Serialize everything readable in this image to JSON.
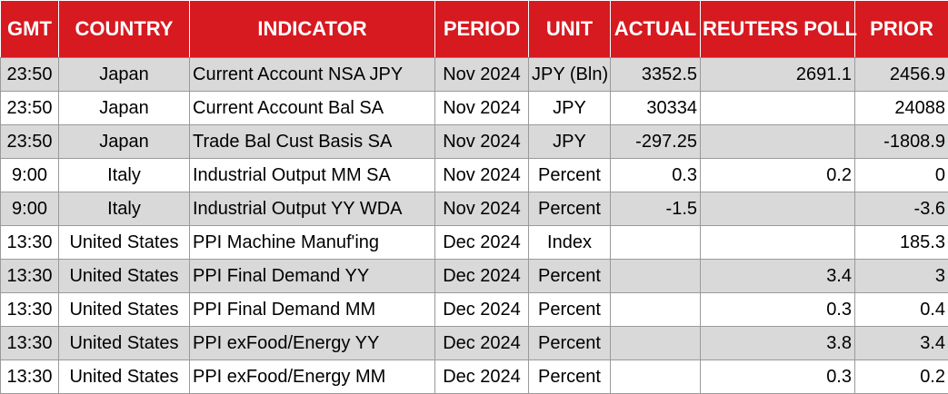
{
  "header": {
    "gmt": "GMT",
    "country": "COUNTRY",
    "indicator": "INDICATOR",
    "period": "PERIOD",
    "unit": "UNIT",
    "actual": "ACTUAL",
    "reuters_poll": "REUTERS POLL",
    "prior": "PRIOR"
  },
  "rows": [
    {
      "gmt": "23:50",
      "country": "Japan",
      "indicator": "Current Account NSA JPY",
      "period": "Nov 2024",
      "unit": "JPY (Bln)",
      "actual": "3352.5",
      "reuters_poll": "2691.1",
      "prior": "2456.9"
    },
    {
      "gmt": "23:50",
      "country": "Japan",
      "indicator": "Current Account Bal SA",
      "period": "Nov 2024",
      "unit": "JPY",
      "actual": "30334",
      "reuters_poll": "",
      "prior": "24088"
    },
    {
      "gmt": "23:50",
      "country": "Japan",
      "indicator": "Trade Bal Cust Basis SA",
      "period": "Nov 2024",
      "unit": "JPY",
      "actual": "-297.25",
      "reuters_poll": "",
      "prior": "-1808.9"
    },
    {
      "gmt": "9:00",
      "country": "Italy",
      "indicator": "Industrial Output MM SA",
      "period": "Nov 2024",
      "unit": "Percent",
      "actual": "0.3",
      "reuters_poll": "0.2",
      "prior": "0"
    },
    {
      "gmt": "9:00",
      "country": "Italy",
      "indicator": "Industrial Output YY WDA",
      "period": "Nov 2024",
      "unit": "Percent",
      "actual": "-1.5",
      "reuters_poll": "",
      "prior": "-3.6"
    },
    {
      "gmt": "13:30",
      "country": "United States",
      "indicator": "PPI Machine Manuf'ing",
      "period": "Dec 2024",
      "unit": "Index",
      "actual": "",
      "reuters_poll": "",
      "prior": "185.3"
    },
    {
      "gmt": "13:30",
      "country": "United States",
      "indicator": "PPI Final Demand YY",
      "period": "Dec 2024",
      "unit": "Percent",
      "actual": "",
      "reuters_poll": "3.4",
      "prior": "3"
    },
    {
      "gmt": "13:30",
      "country": "United States",
      "indicator": "PPI Final Demand MM",
      "period": "Dec 2024",
      "unit": "Percent",
      "actual": "",
      "reuters_poll": "0.3",
      "prior": "0.4"
    },
    {
      "gmt": "13:30",
      "country": "United States",
      "indicator": "PPI exFood/Energy YY",
      "period": "Dec 2024",
      "unit": "Percent",
      "actual": "",
      "reuters_poll": "3.8",
      "prior": "3.4"
    },
    {
      "gmt": "13:30",
      "country": "United States",
      "indicator": "PPI exFood/Energy MM",
      "period": "Dec 2024",
      "unit": "Percent",
      "actual": "",
      "reuters_poll": "0.3",
      "prior": "0.2"
    }
  ],
  "colors": {
    "header_bg": "#d71920",
    "header_text": "#ffffff",
    "stripe_bg": "#d9d9d9",
    "row_bg": "#ffffff"
  }
}
